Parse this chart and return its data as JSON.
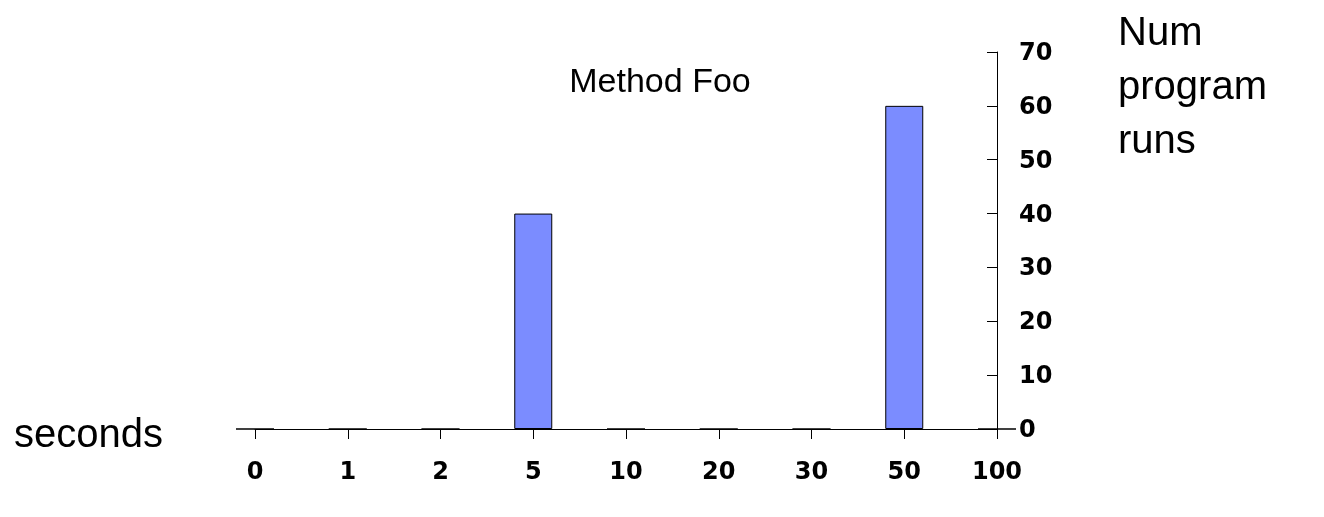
{
  "chart_data": {
    "type": "bar",
    "title": "Method Foo",
    "xlabel": "seconds",
    "ylabel": "Num\nprogram\nruns",
    "categories": [
      "0",
      "1",
      "2",
      "5",
      "10",
      "20",
      "30",
      "50",
      "100"
    ],
    "values": [
      0,
      0,
      0,
      40,
      0,
      0,
      0,
      60,
      0
    ],
    "color": "#7b8cff",
    "ylim": [
      0,
      70
    ],
    "yticks": [
      0,
      10,
      20,
      30,
      40,
      50,
      60,
      70
    ],
    "grid": false
  }
}
